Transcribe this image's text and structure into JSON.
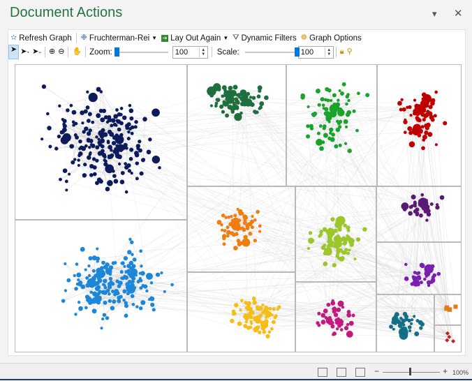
{
  "pane": {
    "title": "Document Actions",
    "dropdown_icon": "triangle-down-icon",
    "close_icon": "close-icon"
  },
  "toolbar": {
    "refresh_label": "Refresh Graph",
    "layout_select_value": "Fruchterman-Rei",
    "layout_again_label": "Lay Out Again",
    "dynamic_filters_label": "Dynamic Filters",
    "graph_options_label": "Graph Options",
    "zoom_label": "Zoom:",
    "zoom_value": "100",
    "zoom_slider_level": 0,
    "scale_label": "Scale:",
    "scale_value": "100",
    "scale_slider_level": 1
  },
  "graph": {
    "edge_color": "#cfcfcf",
    "clusters": [
      {
        "name": "navy",
        "color": "#0d1a5c",
        "shape": "circle",
        "count": 200
      },
      {
        "name": "dark-green",
        "color": "#1e6e3e",
        "shape": "circle",
        "count": 90
      },
      {
        "name": "green",
        "color": "#18a32a",
        "shape": "circle",
        "count": 80
      },
      {
        "name": "red",
        "color": "#c00000",
        "shape": "circle",
        "count": 80
      },
      {
        "name": "sky-blue",
        "color": "#1c86d8",
        "shape": "circle",
        "count": 190
      },
      {
        "name": "orange",
        "color": "#ef7d10",
        "shape": "circle",
        "count": 65
      },
      {
        "name": "lime",
        "color": "#9bc72b",
        "shape": "circle",
        "count": 80
      },
      {
        "name": "purple-1",
        "color": "#5a1a73",
        "shape": "circle",
        "count": 40
      },
      {
        "name": "purple-2",
        "color": "#7a1fb0",
        "shape": "circle",
        "count": 32
      },
      {
        "name": "yellow",
        "color": "#f5bd16",
        "shape": "circle",
        "count": 75
      },
      {
        "name": "magenta",
        "color": "#c4197e",
        "shape": "circle",
        "count": 50
      },
      {
        "name": "teal",
        "color": "#146f86",
        "shape": "circle",
        "count": 32
      },
      {
        "name": "orange-squares",
        "color": "#e57b1b",
        "shape": "square",
        "count": 6
      },
      {
        "name": "red-diamonds",
        "color": "#c01f1f",
        "shape": "diamond",
        "count": 4
      }
    ]
  },
  "statusbar": {
    "zoom_minus": "−",
    "zoom_plus": "+",
    "zoom_percent": "100%"
  }
}
